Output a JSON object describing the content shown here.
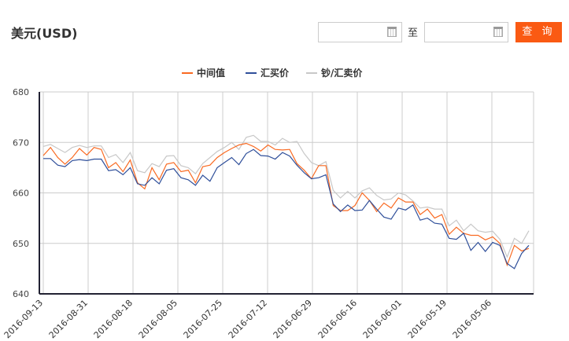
{
  "header": {
    "title": "美元(USD)",
    "date_separator": "至",
    "query_button": "查 询",
    "start_date": "",
    "end_date": ""
  },
  "chart_data": {
    "type": "line",
    "title": "",
    "xlabel": "",
    "ylabel": "",
    "ylim": [
      640,
      680
    ],
    "yticks": [
      640,
      650,
      660,
      670,
      680
    ],
    "xtick_labels": [
      "2016-09-13",
      "2016-08-31",
      "2016-08-18",
      "2016-08-05",
      "2016-07-25",
      "2016-07-12",
      "2016-06-29",
      "2016-06-16",
      "2016-06-01",
      "2016-05-19",
      "2016-05-06"
    ],
    "grid": true,
    "legend": "top-center",
    "series": [
      {
        "name": "中间值",
        "color": "#f96a22",
        "values": [
          667.4,
          669.0,
          667.0,
          665.7,
          667.0,
          668.8,
          667.5,
          669.0,
          668.6,
          665.0,
          666.0,
          664.2,
          666.5,
          662.0,
          660.8,
          665.0,
          662.6,
          665.7,
          666.0,
          664.2,
          664.5,
          662.0,
          665.2,
          665.5,
          667.0,
          668.0,
          668.8,
          669.5,
          669.8,
          669.2,
          668.3,
          669.5,
          668.6,
          668.5,
          668.6,
          665.8,
          664.5,
          662.8,
          665.4,
          665.4,
          657.5,
          656.5,
          656.5,
          657.5,
          660.0,
          658.5,
          656.3,
          658.0,
          657.0,
          659.0,
          658.2,
          658.2,
          655.7,
          656.8,
          655.0,
          655.7,
          651.8,
          653.2,
          652.0,
          651.6,
          651.6,
          650.7,
          651.3,
          650.0,
          645.7,
          649.6,
          648.5,
          649.0
        ]
      },
      {
        "name": "汇买价",
        "color": "#2f4f9a",
        "values": [
          666.8,
          666.8,
          665.5,
          665.2,
          666.4,
          666.6,
          666.4,
          666.7,
          666.7,
          664.4,
          664.6,
          663.6,
          665.0,
          661.8,
          661.5,
          663.0,
          661.8,
          664.5,
          664.8,
          663.0,
          662.6,
          661.5,
          663.5,
          662.3,
          665.0,
          666.0,
          667.0,
          665.6,
          667.8,
          668.6,
          667.4,
          667.3,
          666.7,
          668.0,
          667.3,
          665.5,
          664.0,
          662.8,
          663.0,
          663.6,
          657.8,
          656.3,
          657.6,
          656.5,
          656.6,
          658.5,
          656.8,
          655.2,
          654.8,
          657.0,
          656.6,
          657.6,
          654.6,
          655.0,
          654.0,
          653.8,
          651.0,
          650.8,
          652.0,
          648.6,
          650.2,
          648.4,
          650.2,
          649.6,
          646.0,
          645.0,
          648.0,
          649.6
        ]
      },
      {
        "name": "钞/汇卖价",
        "color": "#c8c8c8",
        "values": [
          669.2,
          669.6,
          668.8,
          668.0,
          669.0,
          669.4,
          669.0,
          669.3,
          669.3,
          667.0,
          667.6,
          666.0,
          668.0,
          664.4,
          664.0,
          665.8,
          665.2,
          667.3,
          667.4,
          665.4,
          665.0,
          663.8,
          665.8,
          667.0,
          668.2,
          669.0,
          670.0,
          668.6,
          671.0,
          671.4,
          670.2,
          670.2,
          669.5,
          670.8,
          670.0,
          670.2,
          667.8,
          666.0,
          665.4,
          666.2,
          660.5,
          659.0,
          660.3,
          659.0,
          660.4,
          661.0,
          659.5,
          658.6,
          658.8,
          660.0,
          659.6,
          658.4,
          657.0,
          657.2,
          656.8,
          656.8,
          653.5,
          654.6,
          652.5,
          653.8,
          652.5,
          652.2,
          652.4,
          650.8,
          647.3,
          651.0,
          650.0,
          652.5
        ]
      }
    ]
  }
}
